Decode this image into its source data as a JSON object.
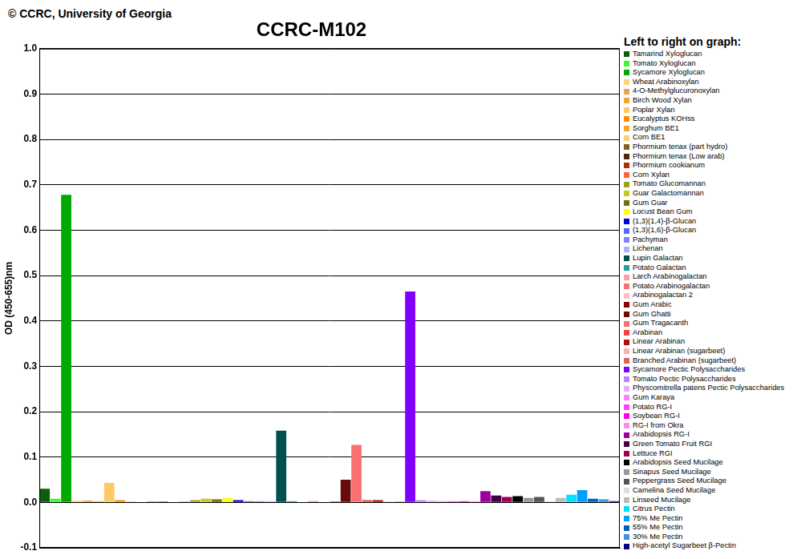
{
  "chart_data": {
    "type": "bar",
    "title": "CCRC-M102",
    "annotations": [
      "© CCRC, University of Georgia"
    ],
    "y_label": "OD (450-655)nm",
    "legend_title": "Left to right on graph:",
    "legend": "right",
    "grid": true,
    "tick_labels": "y",
    "ylim": [
      -0.1,
      1.0
    ],
    "yticks": [
      -0.1,
      {
        "value": 0,
        "label": "0.0"
      },
      0.1,
      0.2,
      0.3,
      0.4,
      0.5,
      0.6,
      0.7,
      0.8,
      0.9,
      {
        "value": 1.0,
        "label": "1.0"
      }
    ],
    "categories": [
      "Tamarind Xyloglucan",
      "Tomato Xyloglucan",
      "Sycamore Xyloglucan",
      "Wheat Arabinoxylan",
      "4-O-Methylglucuronoxylan",
      "Birch Wood Xylan",
      "Poplar Xylan",
      "Eucalyptus KOHss",
      "Sorghum BE1",
      "Corn BE1",
      "Phormium tenax (part hydro)",
      "Phormium tenax (Low arab)",
      "Phormium cookianum",
      "Corn Xylan",
      "Tomato Glucomannan",
      "Guar Galactomannan",
      "Gum Guar",
      "Locust Bean Gum",
      "(1,3)(1,4)-β-Glucan",
      "(1,3)(1,6)-β-Glucan",
      "Pachyman",
      "Lichenan",
      "Lupin Galactan",
      "Potato Galactan",
      "Larch Arabinogalactan",
      "Potato Arabinogalactan",
      "Arabinogalactan 2",
      "Gum Arabic",
      "Gum Ghatti",
      "Gum Tragacanth",
      "Arabinan",
      "Linear Arabinan",
      "Linear Arabinan (sugarbeet)",
      "Branched Arabinan (sugarbeet)",
      "Sycamore Pectic Polysaccharides",
      "Tomato Pectic Polysaccharides",
      "Physcomitrella patens Pectic Polysaccharides",
      "Gum Karaya",
      "Potato RG-I",
      "Soybean RG-I",
      "RG-I from Okra",
      "Arabidopsis RG-I",
      "Green Tomato Fruit RGI",
      "Lettuce RGI",
      "Arabidopsis Seed Mucilage",
      "Sinapus Seed Mucilage",
      "Peppergrass Seed Mucilage",
      "Camelina Seed Mucilage",
      "Linseed Mucilage",
      "Citrus Pectin",
      "75% Me Pectin",
      "55% Me Pectin",
      "30% Me Pectin",
      "High-acetyl Sugarbeet β-Pectin"
    ],
    "values": [
      0.03,
      0.008,
      0.678,
      0.004,
      0.004,
      0.003,
      0.043,
      0.005,
      0.002,
      0.001,
      0.002,
      0.002,
      0.001,
      0.002,
      0.005,
      0.008,
      0.007,
      0.01,
      0.005,
      0.003,
      0.003,
      0.003,
      0.158,
      0.003,
      0.001,
      0.003,
      0.001,
      0.002,
      0.05,
      0.127,
      0.005,
      0.005,
      0.002,
      0.002,
      0.465,
      0.005,
      0.004,
      0.003,
      0.003,
      0.003,
      0.003,
      0.025,
      0.015,
      0.012,
      0.014,
      0.01,
      0.012,
      0.003,
      0.01,
      0.017,
      0.027,
      0.008,
      0.007,
      0.003
    ],
    "colors": [
      "#0d5d0d",
      "#33ff33",
      "#00aa00",
      "#ffd27f",
      "#f0a050",
      "#f0a830",
      "#ffc866",
      "#ff8c00",
      "#f5a623",
      "#f8d080",
      "#8b5a2b",
      "#4a2a0a",
      "#b03000",
      "#ff6040",
      "#a0a020",
      "#c8c820",
      "#707010",
      "#ffff00",
      "#0000ee",
      "#5566ff",
      "#8080ff",
      "#b0b0ff",
      "#005050",
      "#20a0a0",
      "#ffa0a0",
      "#ff7070",
      "#ffc0c8",
      "#8b0000",
      "#6b0a0a",
      "#f87070",
      "#ee4444",
      "#aa1010",
      "#ffb0b0",
      "#e06060",
      "#8000ff",
      "#c080ff",
      "#e0b0ff",
      "#ff80ff",
      "#ff40ff",
      "#ff00e0",
      "#ff90e0",
      "#a000a0",
      "#400040",
      "#a00050",
      "#000000",
      "#999999",
      "#555555",
      "#dddddd",
      "#bbbbbb",
      "#00e0ff",
      "#00a0ff",
      "#0060c0",
      "#4090e0",
      "#000080"
    ]
  }
}
